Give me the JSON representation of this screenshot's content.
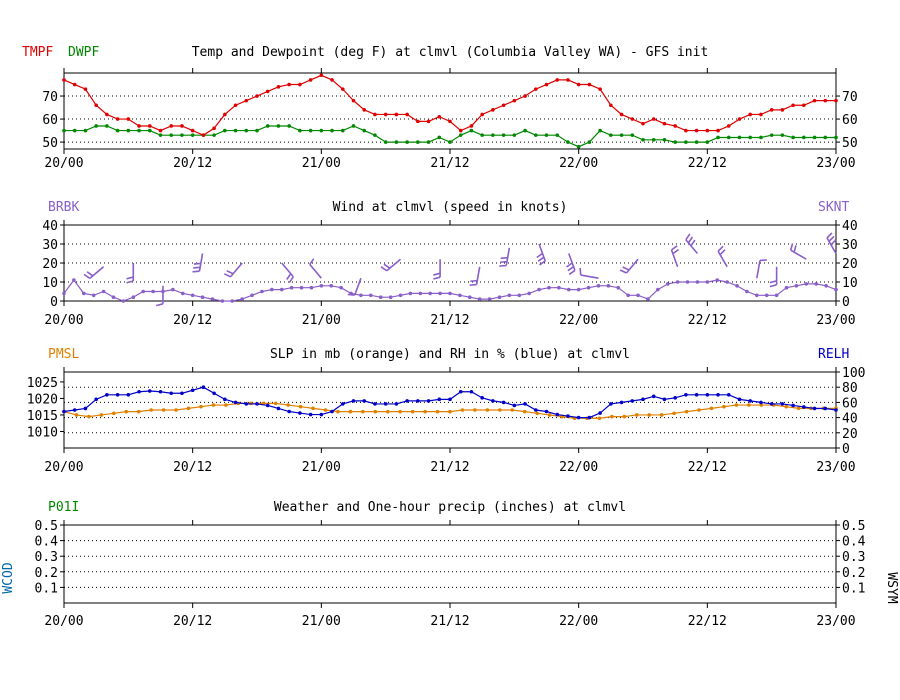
{
  "colors": {
    "temperature": "#e00000",
    "dewpoint": "#008800",
    "wind": "#8a5fc9",
    "pressure": "#e08000",
    "humidity": "#0000c8",
    "precip": "#008800",
    "wx_code": "#0066aa",
    "axis": "#000000",
    "grid": "#000000"
  },
  "time_labels": [
    "20/00",
    "20/12",
    "21/00",
    "21/12",
    "22/00",
    "22/12",
    "23/00"
  ],
  "chart_data": [
    {
      "type": "line",
      "title": "Temp and Dewpoint (deg F) at clmvl (Columbia Valley WA) - GFS init",
      "left_labels": [
        "TMPF",
        "DWPF"
      ],
      "right_labels": [],
      "x": "forecast hour 0-72, 3-hourly points shown every hour-step",
      "ylim": [
        47,
        80
      ],
      "yticks": [
        50,
        60,
        70
      ],
      "ytick_labels": [
        "50",
        "60",
        "70"
      ],
      "series": [
        {
          "name": "TMPF",
          "color_key": "temperature",
          "values": [
            77,
            75,
            73,
            66,
            62,
            60,
            60,
            57,
            57,
            55,
            57,
            57,
            55,
            53,
            56,
            62,
            66,
            68,
            70,
            72,
            74,
            75,
            75,
            77,
            79,
            77,
            73,
            68,
            64,
            62,
            62,
            62,
            62,
            59,
            59,
            61,
            59,
            55,
            57,
            62,
            64,
            66,
            68,
            70,
            73,
            75,
            77,
            77,
            75,
            75,
            73,
            66,
            62,
            60,
            58,
            60,
            58,
            57,
            55,
            55,
            55,
            55,
            57,
            60,
            62,
            62,
            64,
            64,
            66,
            66,
            68,
            68,
            68
          ]
        },
        {
          "name": "DWPF",
          "color_key": "dewpoint",
          "values": [
            55,
            55,
            55,
            57,
            57,
            55,
            55,
            55,
            55,
            53,
            53,
            53,
            53,
            53,
            53,
            55,
            55,
            55,
            55,
            57,
            57,
            57,
            55,
            55,
            55,
            55,
            55,
            57,
            55,
            53,
            50,
            50,
            50,
            50,
            50,
            52,
            50,
            53,
            55,
            53,
            53,
            53,
            53,
            55,
            53,
            53,
            53,
            50,
            48,
            50,
            55,
            53,
            53,
            53,
            51,
            51,
            51,
            50,
            50,
            50,
            50,
            52,
            52,
            52,
            52,
            52,
            53,
            53,
            52,
            52,
            52,
            52,
            52
          ]
        }
      ]
    },
    {
      "type": "line",
      "title": "Wind at  clmvl (speed in knots)",
      "left_labels": [
        "BRBK"
      ],
      "right_labels": [
        "SKNT"
      ],
      "ylim": [
        0,
        40
      ],
      "yticks": [
        0,
        10,
        20,
        30,
        40
      ],
      "ytick_labels": [
        "0",
        "10",
        "20",
        "30",
        "40"
      ],
      "series": [
        {
          "name": "SKNT",
          "color_key": "wind",
          "values": [
            4,
            11,
            4,
            3,
            5,
            2,
            0,
            2,
            5,
            5,
            5,
            6,
            4,
            3,
            2,
            1,
            0,
            0,
            1,
            3,
            5,
            6,
            6,
            7,
            7,
            7,
            8,
            8,
            7,
            4,
            3,
            3,
            2,
            2,
            3,
            4,
            4,
            4,
            4,
            4,
            3,
            2,
            1,
            1,
            2,
            3,
            3,
            4,
            6,
            7,
            7,
            6,
            6,
            7,
            8,
            8,
            7,
            3,
            3,
            1,
            6,
            9,
            10,
            10,
            10,
            10,
            11,
            10,
            8,
            5,
            3,
            3,
            3,
            7,
            8,
            9,
            9,
            8,
            6
          ]
        }
      ],
      "barbs": [
        {
          "i": 4,
          "spd": 18,
          "dir": 230
        },
        {
          "i": 7,
          "spd": 20,
          "dir": 180
        },
        {
          "i": 10,
          "spd": 8,
          "dir": 180
        },
        {
          "i": 14,
          "spd": 25,
          "dir": 190
        },
        {
          "i": 18,
          "spd": 20,
          "dir": 220
        },
        {
          "i": 22,
          "spd": 20,
          "dir": 140
        },
        {
          "i": 26,
          "spd": 12,
          "dir": 320
        },
        {
          "i": 30,
          "spd": 12,
          "dir": 200
        },
        {
          "i": 34,
          "spd": 22,
          "dir": 230
        },
        {
          "i": 38,
          "spd": 22,
          "dir": 180
        },
        {
          "i": 42,
          "spd": 18,
          "dir": 190
        },
        {
          "i": 45,
          "spd": 28,
          "dir": 190
        },
        {
          "i": 48,
          "spd": 30,
          "dir": 160
        },
        {
          "i": 51,
          "spd": 25,
          "dir": 160
        },
        {
          "i": 54,
          "spd": 12,
          "dir": 280
        },
        {
          "i": 58,
          "spd": 22,
          "dir": 220
        },
        {
          "i": 62,
          "spd": 18,
          "dir": 340
        },
        {
          "i": 64,
          "spd": 25,
          "dir": 320
        },
        {
          "i": 67,
          "spd": 18,
          "dir": 330
        },
        {
          "i": 70,
          "spd": 12,
          "dir": 10
        },
        {
          "i": 72,
          "spd": 18,
          "dir": 180
        },
        {
          "i": 75,
          "spd": 22,
          "dir": 300
        },
        {
          "i": 78,
          "spd": 25,
          "dir": 330
        }
      ]
    },
    {
      "type": "line",
      "title": "SLP in mb (orange) and RH in % (blue) at  clmvl",
      "left_labels": [
        "PMSL"
      ],
      "right_labels": [
        "RELH"
      ],
      "ylim": [
        1005,
        1028
      ],
      "yticks": [
        1010,
        1015,
        1020,
        1025
      ],
      "ytick_labels": [
        "1010",
        "1015",
        "1020",
        "1025"
      ],
      "y2lim": [
        0,
        100
      ],
      "y2ticks": [
        0,
        20,
        40,
        60,
        80,
        100
      ],
      "y2tick_labels": [
        "0",
        "20",
        "40",
        "60",
        "80",
        "100"
      ],
      "series": [
        {
          "name": "PMSL",
          "color_key": "pressure",
          "axis": "left",
          "values": [
            1016,
            1015,
            1014.5,
            1015,
            1015.5,
            1016,
            1016,
            1016.5,
            1016.5,
            1016.5,
            1017,
            1017.5,
            1018,
            1018,
            1018.5,
            1018.5,
            1018.5,
            1018.5,
            1018,
            1017.5,
            1017,
            1016.5,
            1016,
            1016,
            1016,
            1016,
            1016,
            1016,
            1016,
            1016,
            1016,
            1016,
            1016.5,
            1016.5,
            1016.5,
            1016.5,
            1016.5,
            1016,
            1015.5,
            1015,
            1014.5,
            1014,
            1014,
            1014,
            1014.5,
            1014.5,
            1015,
            1015,
            1015,
            1015.5,
            1016,
            1016.5,
            1017,
            1017.5,
            1018,
            1018,
            1018,
            1018,
            1017.5,
            1017,
            1017,
            1017,
            1017
          ]
        },
        {
          "name": "RELH",
          "color_key": "humidity",
          "axis": "right",
          "values": [
            48,
            50,
            52,
            64,
            70,
            70,
            70,
            74,
            75,
            74,
            72,
            72,
            76,
            80,
            72,
            64,
            60,
            58,
            58,
            56,
            52,
            48,
            46,
            44,
            44,
            48,
            58,
            62,
            62,
            58,
            58,
            58,
            62,
            62,
            62,
            64,
            64,
            74,
            74,
            66,
            62,
            60,
            56,
            58,
            50,
            48,
            44,
            42,
            40,
            40,
            46,
            58,
            60,
            62,
            64,
            68,
            64,
            66,
            70,
            70,
            70,
            70,
            70,
            64,
            62,
            60,
            58,
            58,
            56,
            54,
            52,
            52,
            50
          ]
        }
      ]
    },
    {
      "type": "bar",
      "title": "Weather and One-hour precip (inches) at  clmvl",
      "left_labels": [
        "P01I"
      ],
      "right_labels": [],
      "side_labels": [
        "WCOD",
        "WSYM"
      ],
      "ylim": [
        0,
        0.5
      ],
      "yticks": [
        0.1,
        0.2,
        0.3,
        0.4,
        0.5
      ],
      "ytick_labels": [
        "0.1",
        "0.2",
        "0.3",
        "0.4",
        "0.5"
      ],
      "series": [
        {
          "name": "P01I",
          "color_key": "precip",
          "values": []
        }
      ]
    }
  ]
}
